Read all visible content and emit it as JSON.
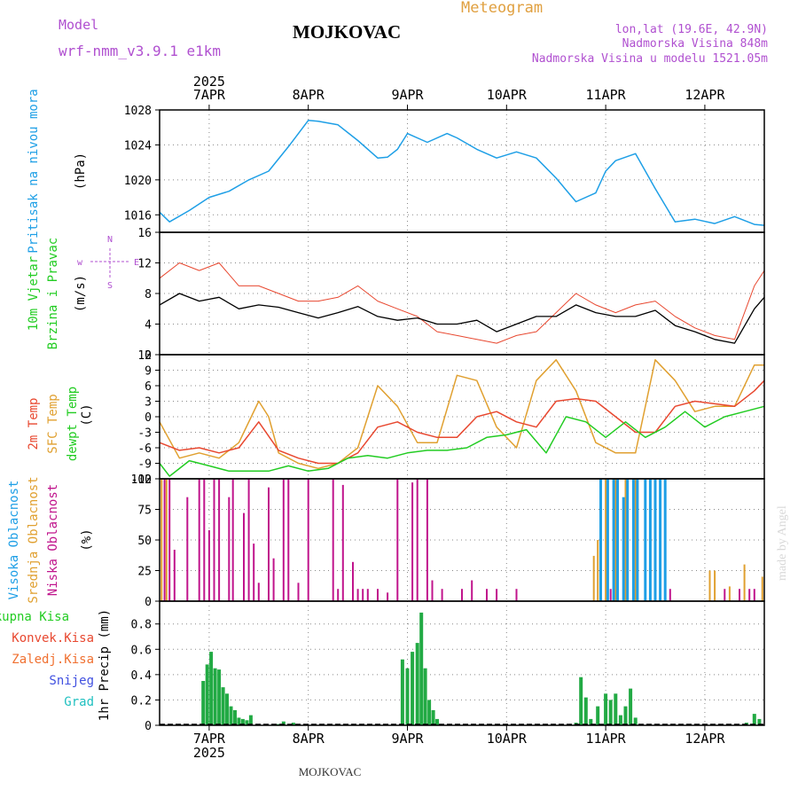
{
  "header": {
    "model_label": "Model",
    "model_name": "wrf-nmm_v3.9.1 e1km",
    "location": "MOJKOVAC",
    "meteogram": "Meteogram",
    "lonlat": "lon,lat (19.6E, 42.9N)",
    "elevation": "Nadmorska Visina 848m",
    "elevation_model": "Nadmorska Visina u modelu 1521.05m",
    "footer_location": "MOJKOVAC",
    "watermark": "made by Angel"
  },
  "time_axis": {
    "year": "2025",
    "day_labels": [
      "7APR",
      "8APR",
      "9APR",
      "10APR",
      "11APR",
      "12APR"
    ],
    "day_values": [
      0.5,
      1.5,
      2.5,
      3.5,
      4.5,
      5.5
    ],
    "range": [
      0,
      6.1
    ]
  },
  "colors": {
    "pressure": "#1e9fe6",
    "wind_speed": "#000000",
    "gust": "#e84830",
    "temp2m": "#e84830",
    "sfc": "#e0a030",
    "dewpt": "#22cc22",
    "low_cloud": "#c0148c",
    "mid_cloud": "#e0a030",
    "high_cloud": "#1e9fe6",
    "total_precip": "#22aa44",
    "grid": "#888888"
  },
  "chart_data": [
    {
      "type": "line",
      "name": "pressure",
      "ylabel_main": "Pritisak na nivou mora",
      "ylabel_unit": "(hPa)",
      "ylim": [
        1014,
        1028
      ],
      "yticks": [
        1016,
        1020,
        1024,
        1028
      ],
      "grid": true,
      "series": [
        {
          "name": "pressure",
          "x": [
            0,
            0.1,
            0.3,
            0.5,
            0.7,
            0.9,
            1.1,
            1.3,
            1.5,
            1.6,
            1.8,
            2.0,
            2.2,
            2.3,
            2.4,
            2.5,
            2.7,
            2.9,
            3.0,
            3.2,
            3.4,
            3.6,
            3.8,
            4.0,
            4.2,
            4.4,
            4.5,
            4.6,
            4.8,
            5.0,
            5.2,
            5.4,
            5.6,
            5.8,
            6.0,
            6.1
          ],
          "values": [
            1016.3,
            1015.2,
            1016.5,
            1018.0,
            1018.7,
            1020.0,
            1021.0,
            1023.8,
            1026.8,
            1026.7,
            1026.3,
            1024.5,
            1022.5,
            1022.6,
            1023.5,
            1025.3,
            1024.3,
            1025.3,
            1024.8,
            1023.5,
            1022.5,
            1023.2,
            1022.5,
            1020.2,
            1017.5,
            1018.5,
            1021.0,
            1022.2,
            1023.0,
            1019.0,
            1015.2,
            1015.5,
            1015.0,
            1015.8,
            1014.9,
            1014.8
          ]
        }
      ]
    },
    {
      "type": "line",
      "name": "wind",
      "ylabel_main": "10m Vjetar",
      "ylabel_sub": "Brzina i Pravac",
      "ylabel_unit": "(m/s)",
      "compass": [
        "N",
        "w",
        "E",
        "S"
      ],
      "ylim": [
        0,
        16
      ],
      "yticks": [
        0,
        4,
        8,
        12,
        16
      ],
      "grid": true,
      "series": [
        {
          "name": "speed",
          "x": [
            0,
            0.2,
            0.4,
            0.6,
            0.8,
            1.0,
            1.2,
            1.4,
            1.6,
            1.8,
            2.0,
            2.2,
            2.4,
            2.6,
            2.8,
            3.0,
            3.2,
            3.4,
            3.6,
            3.8,
            4.0,
            4.2,
            4.4,
            4.6,
            4.8,
            5.0,
            5.2,
            5.4,
            5.6,
            5.8,
            6.0,
            6.1
          ],
          "values": [
            6.5,
            8.0,
            7.0,
            7.5,
            6.0,
            6.5,
            6.2,
            5.5,
            4.8,
            5.5,
            6.3,
            5.0,
            4.5,
            4.8,
            4.0,
            4.0,
            4.5,
            3.0,
            4.0,
            5.0,
            5.0,
            6.5,
            5.5,
            5.0,
            5.0,
            5.8,
            3.8,
            3.0,
            2.0,
            1.5,
            6.0,
            7.5
          ]
        },
        {
          "name": "gust",
          "x": [
            0,
            0.2,
            0.4,
            0.6,
            0.8,
            1.0,
            1.2,
            1.4,
            1.6,
            1.8,
            2.0,
            2.2,
            2.4,
            2.6,
            2.8,
            3.0,
            3.2,
            3.4,
            3.6,
            3.8,
            4.0,
            4.2,
            4.4,
            4.6,
            4.8,
            5.0,
            5.2,
            5.4,
            5.6,
            5.8,
            6.0,
            6.1
          ],
          "values": [
            10,
            12,
            11,
            12,
            9,
            9,
            8,
            7,
            7,
            7.5,
            9,
            7,
            6,
            5,
            3,
            2.5,
            2,
            1.5,
            2.5,
            3,
            5.5,
            8,
            6.5,
            5.5,
            6.5,
            7,
            5,
            3.5,
            2.5,
            2,
            9,
            11
          ]
        }
      ]
    },
    {
      "type": "line",
      "name": "temperature",
      "ylabel_main": "2m Temp",
      "ylabel_sub": "SFC Temp",
      "ylabel_sub2": "dewpt Temp",
      "ylabel_unit": "(C)",
      "ylim": [
        -12,
        12
      ],
      "yticks": [
        -12,
        -9,
        -6,
        -3,
        0,
        3,
        6,
        9,
        12
      ],
      "grid": true,
      "series": [
        {
          "name": "2m Temp",
          "x": [
            0,
            0.2,
            0.4,
            0.6,
            0.8,
            1.0,
            1.2,
            1.4,
            1.6,
            1.8,
            2.0,
            2.2,
            2.4,
            2.6,
            2.8,
            3.0,
            3.2,
            3.4,
            3.6,
            3.8,
            4.0,
            4.2,
            4.4,
            4.6,
            4.8,
            5.0,
            5.2,
            5.4,
            5.6,
            5.8,
            6.0,
            6.1
          ],
          "values": [
            -5,
            -6.5,
            -6,
            -7,
            -6,
            -1,
            -6.5,
            -8,
            -9,
            -9,
            -7,
            -2,
            -1,
            -3,
            -4,
            -4,
            0,
            1,
            -1,
            -2,
            3,
            3.5,
            3,
            0,
            -3,
            -3,
            2,
            3,
            2.5,
            2,
            5,
            7
          ]
        },
        {
          "name": "SFC Temp",
          "x": [
            0,
            0.2,
            0.4,
            0.6,
            0.8,
            1.0,
            1.1,
            1.2,
            1.4,
            1.6,
            1.8,
            2.0,
            2.2,
            2.4,
            2.6,
            2.8,
            3.0,
            3.2,
            3.4,
            3.6,
            3.8,
            4.0,
            4.2,
            4.4,
            4.6,
            4.8,
            5.0,
            5.2,
            5.4,
            5.6,
            5.8,
            6.0,
            6.1
          ],
          "values": [
            -1,
            -8,
            -7,
            -8,
            -5,
            3,
            0,
            -7,
            -9,
            -10,
            -9,
            -6,
            6,
            2,
            -5,
            -5,
            8,
            7,
            -2,
            -6,
            7,
            11,
            5,
            -5,
            -7,
            -7,
            11,
            7,
            1,
            2,
            2,
            10,
            10
          ]
        },
        {
          "name": "dewpt Temp",
          "x": [
            0,
            0.1,
            0.3,
            0.5,
            0.7,
            0.9,
            1.1,
            1.3,
            1.5,
            1.7,
            1.9,
            2.1,
            2.3,
            2.5,
            2.7,
            2.9,
            3.1,
            3.3,
            3.5,
            3.7,
            3.9,
            4.1,
            4.3,
            4.5,
            4.7,
            4.9,
            5.1,
            5.3,
            5.5,
            5.7,
            5.9,
            6.1
          ],
          "values": [
            -9,
            -11.5,
            -8.5,
            -9.5,
            -10.5,
            -10.5,
            -10.5,
            -9.5,
            -10.5,
            -10,
            -8,
            -7.5,
            -8,
            -7,
            -6.5,
            -6.5,
            -6,
            -4,
            -3.5,
            -2.5,
            -7,
            0,
            -1,
            -4,
            -1,
            -4,
            -2,
            1,
            -2,
            0,
            1,
            2
          ]
        }
      ]
    },
    {
      "type": "bar",
      "name": "cloud",
      "ylabel_main": "Visoka Oblacnost",
      "ylabel_sub": "Srednja Oblacnost",
      "ylabel_sub2": "Niska Oblacnost",
      "ylabel_unit": "(%)",
      "ylim": [
        0,
        100
      ],
      "yticks": [
        0,
        25,
        50,
        75,
        100
      ],
      "grid": true,
      "series": [
        {
          "name": "Niska Oblacnost",
          "x": [
            0.05,
            0.1,
            0.15,
            0.28,
            0.4,
            0.45,
            0.5,
            0.55,
            0.6,
            0.7,
            0.74,
            0.85,
            0.9,
            0.95,
            1.0,
            1.1,
            1.15,
            1.25,
            1.3,
            1.4,
            1.5,
            1.75,
            1.8,
            1.85,
            1.95,
            2.0,
            2.05,
            2.1,
            2.2,
            2.3,
            2.4,
            2.55,
            2.6,
            2.7,
            2.75,
            2.85,
            3.05,
            3.15,
            3.3,
            3.4,
            3.6,
            4.55,
            4.8,
            5.15,
            5.7,
            5.85,
            5.95,
            6.0
          ],
          "values": [
            100,
            100,
            42,
            85,
            100,
            100,
            58,
            100,
            100,
            85,
            100,
            72,
            100,
            47,
            15,
            93,
            35,
            100,
            100,
            15,
            100,
            100,
            10,
            95,
            32,
            10,
            10,
            10,
            10,
            7,
            100,
            97,
            100,
            100,
            17,
            10,
            10,
            17,
            10,
            10,
            10,
            10,
            10,
            10,
            10,
            10,
            10,
            10
          ]
        },
        {
          "name": "Srednja Oblacnost",
          "x": [
            0.02,
            0.07,
            4.38,
            4.42,
            4.5,
            4.6,
            4.7,
            4.8,
            5.55,
            5.6,
            5.75,
            5.9,
            6.08
          ],
          "values": [
            100,
            100,
            37,
            50,
            100,
            100,
            100,
            100,
            25,
            25,
            12,
            30,
            20
          ]
        },
        {
          "name": "Visoka Oblacnost",
          "x": [
            4.45,
            4.52,
            4.58,
            4.62,
            4.68,
            4.72,
            4.78,
            4.82,
            4.9,
            4.95,
            5.0,
            5.05,
            5.1
          ],
          "values": [
            100,
            100,
            100,
            100,
            85,
            100,
            100,
            100,
            100,
            100,
            100,
            100,
            100
          ]
        }
      ]
    },
    {
      "type": "bar",
      "name": "precip",
      "ylabel_main": "Ukupna Kisa",
      "ylabel_sub": "Konvek.Kisa",
      "ylabel_sub2": "Zaledj.Kisa",
      "ylabel_snow": "Snijeg",
      "ylabel_grad": "Grad",
      "ylabel_unit": "1hr Precip (mm)",
      "ylim": [
        0,
        0.98
      ],
      "yticks": [
        0,
        0.2,
        0.4,
        0.6,
        0.8
      ],
      "grid": true,
      "series": [
        {
          "name": "Ukupna Kisa",
          "x": [
            0.44,
            0.48,
            0.52,
            0.56,
            0.6,
            0.64,
            0.68,
            0.72,
            0.76,
            0.8,
            0.84,
            0.88,
            0.92,
            1.2,
            1.25,
            1.35,
            2.45,
            2.5,
            2.55,
            2.6,
            2.64,
            2.68,
            2.72,
            2.76,
            2.8,
            4.2,
            4.25,
            4.3,
            4.35,
            4.42,
            4.5,
            4.55,
            4.6,
            4.65,
            4.7,
            4.75,
            4.8,
            5.92,
            6.0,
            6.05
          ],
          "values": [
            0.35,
            0.48,
            0.58,
            0.45,
            0.44,
            0.3,
            0.25,
            0.15,
            0.12,
            0.06,
            0.05,
            0.04,
            0.08,
            0.01,
            0.03,
            0.02,
            0.52,
            0.45,
            0.58,
            0.65,
            0.89,
            0.45,
            0.2,
            0.12,
            0.05,
            0.02,
            0.38,
            0.22,
            0.05,
            0.15,
            0.25,
            0.2,
            0.25,
            0.08,
            0.15,
            0.29,
            0.06,
            0.02,
            0.09,
            0.05
          ]
        }
      ]
    }
  ]
}
